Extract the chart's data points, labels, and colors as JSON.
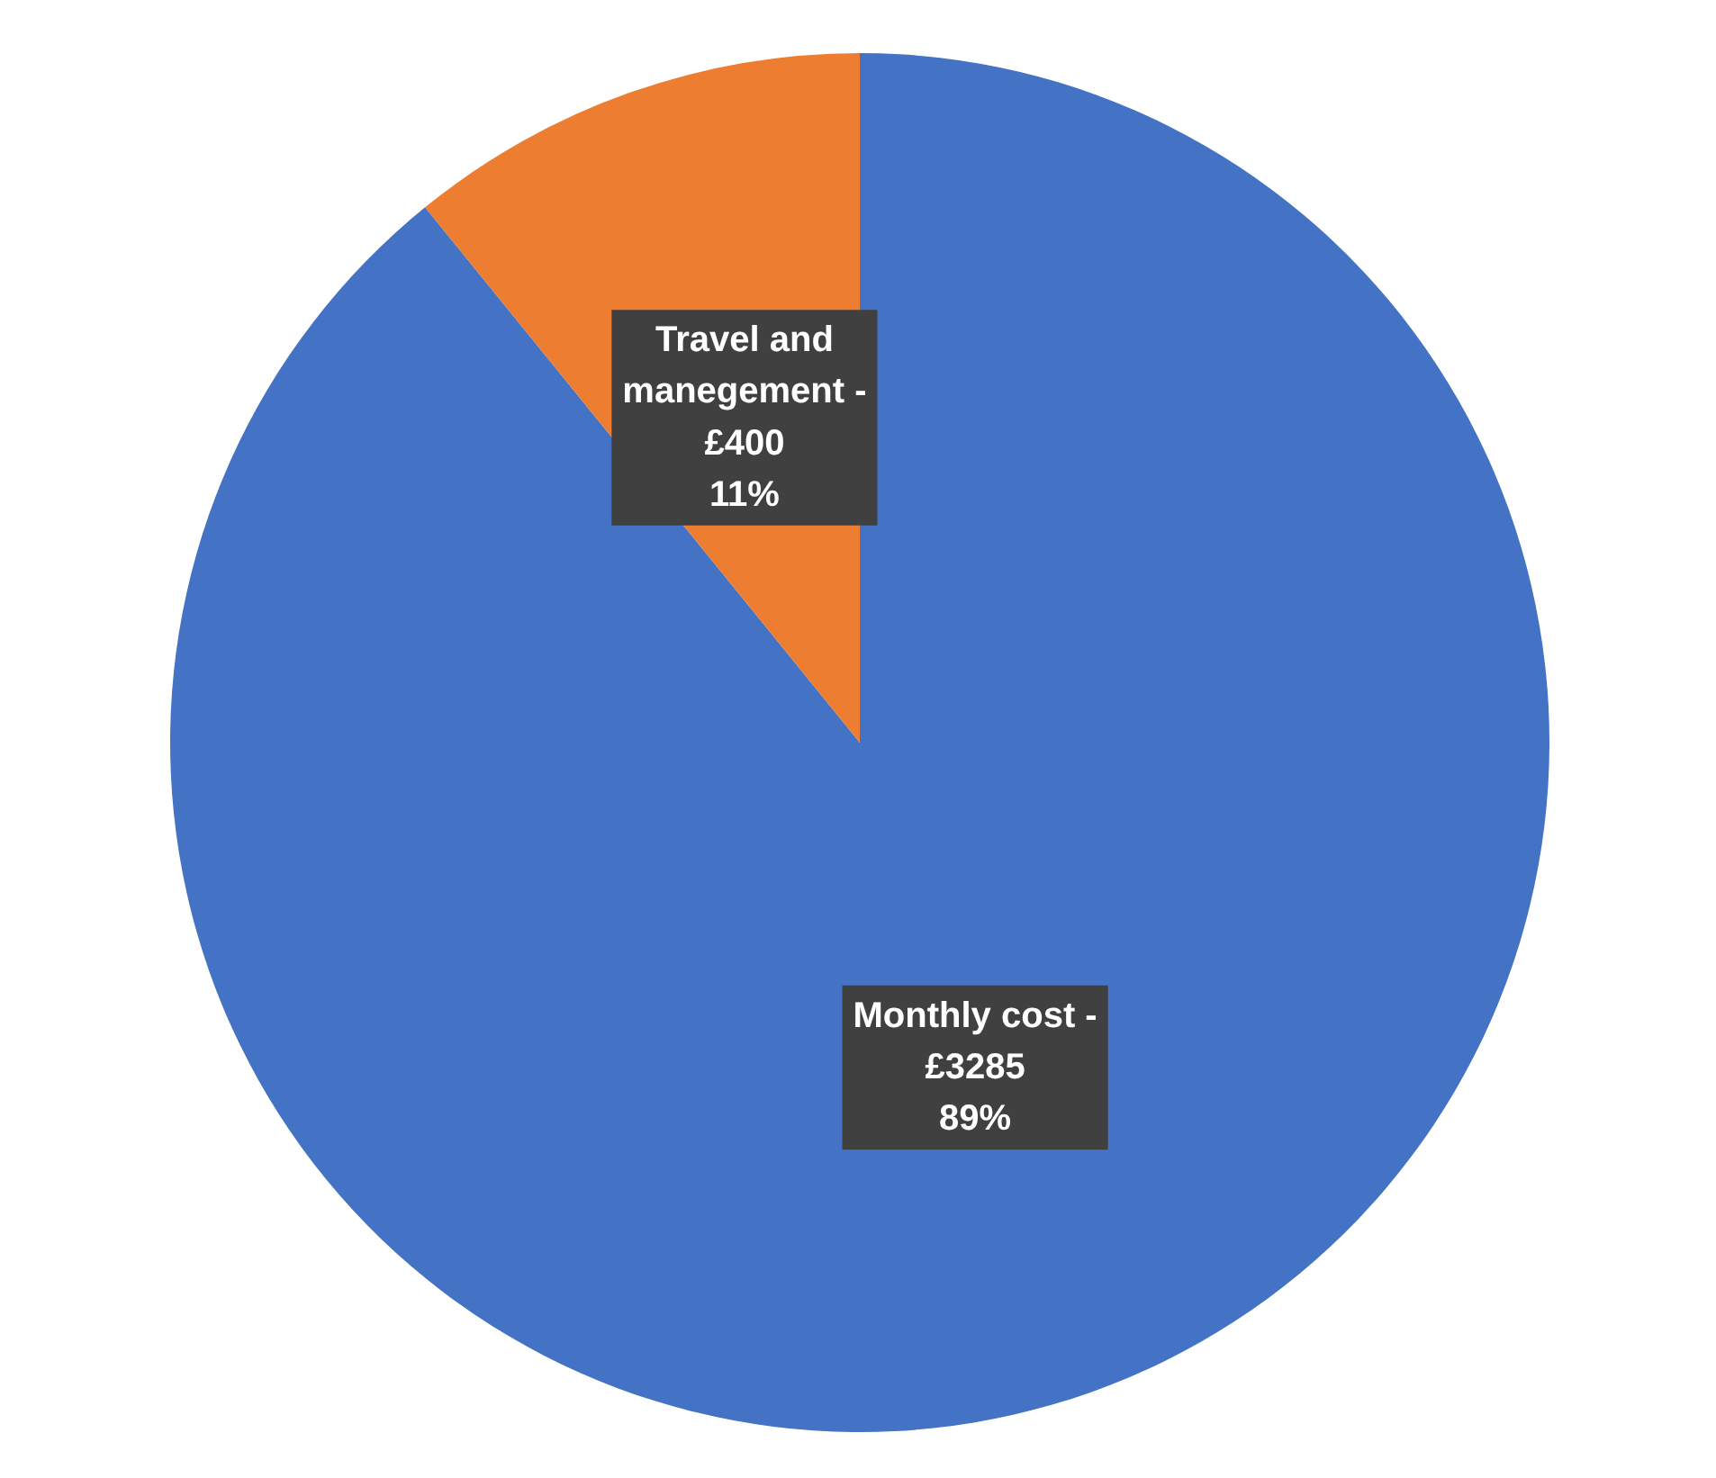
{
  "chart_data": {
    "type": "pie",
    "categories": [
      "Monthly cost",
      "Travel and manegement"
    ],
    "values": [
      3285,
      400
    ],
    "colors": [
      "#4472c4",
      "#ed7d31"
    ],
    "value_labels": [
      "-\n£3285\n89%",
      "-\n£400\n11%"
    ]
  }
}
